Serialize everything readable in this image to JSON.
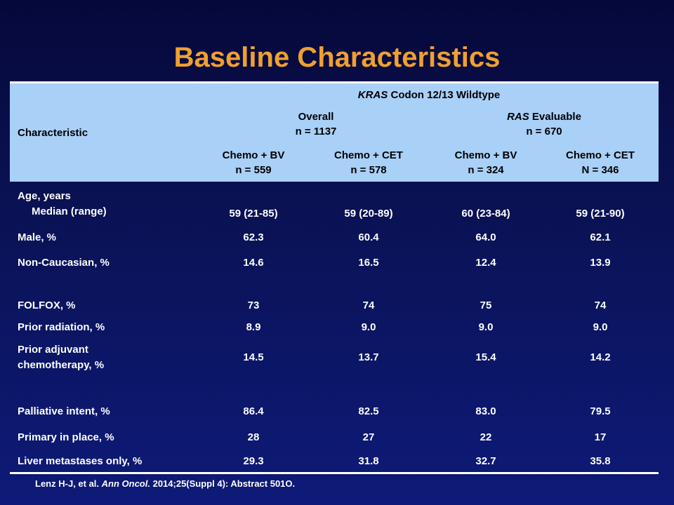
{
  "title": "Baseline Characteristics",
  "header": {
    "group_prefix": "KRAS",
    "group_suffix": " Codon 12/13 Wildtype",
    "characteristic": "Characteristic",
    "overall_label": "Overall",
    "overall_n": "n = 1137",
    "ras_prefix": "RAS",
    "ras_suffix": " Evaluable",
    "ras_n": "n = 670",
    "columns": [
      {
        "name": "Chemo + BV",
        "n": "n = 559"
      },
      {
        "name": "Chemo + CET",
        "n": "n = 578"
      },
      {
        "name": "Chemo + BV",
        "n": "n = 324"
      },
      {
        "name": "Chemo + CET",
        "n": "N = 346"
      }
    ]
  },
  "rows": [
    {
      "label1": "Age, years",
      "label2": "Median (range)",
      "values": [
        "59 (21-85)",
        "59 (20-89)",
        "60 (23-84)",
        "59 (21-90)"
      ]
    },
    {
      "label1": "Male, %",
      "values": [
        "62.3",
        "60.4",
        "64.0",
        "62.1"
      ]
    },
    {
      "label1": "Non-Caucasian, %",
      "values": [
        "14.6",
        "16.5",
        "12.4",
        "13.9"
      ]
    },
    {
      "label1": "FOLFOX, %",
      "values": [
        "73",
        "74",
        "75",
        "74"
      ]
    },
    {
      "label1": "Prior radiation, %",
      "values": [
        "8.9",
        "9.0",
        "9.0",
        "9.0"
      ]
    },
    {
      "label1": "Prior adjuvant",
      "label2": "chemotherapy, %",
      "values": [
        "14.5",
        "13.7",
        "15.4",
        "14.2"
      ]
    },
    {
      "label1": "Palliative intent, %",
      "values": [
        "86.4",
        "82.5",
        "83.0",
        "79.5"
      ]
    },
    {
      "label1": "Primary in place, %",
      "values": [
        "28",
        "27",
        "22",
        "17"
      ]
    },
    {
      "label1": "Liver metastases only, %",
      "values": [
        "29.3",
        "31.8",
        "32.7",
        "35.8"
      ]
    }
  ],
  "reference": {
    "authors": "Lenz H-J, et al. ",
    "journal": "Ann Oncol.",
    "details": " 2014;25(Suppl 4): Abstract 501O."
  }
}
